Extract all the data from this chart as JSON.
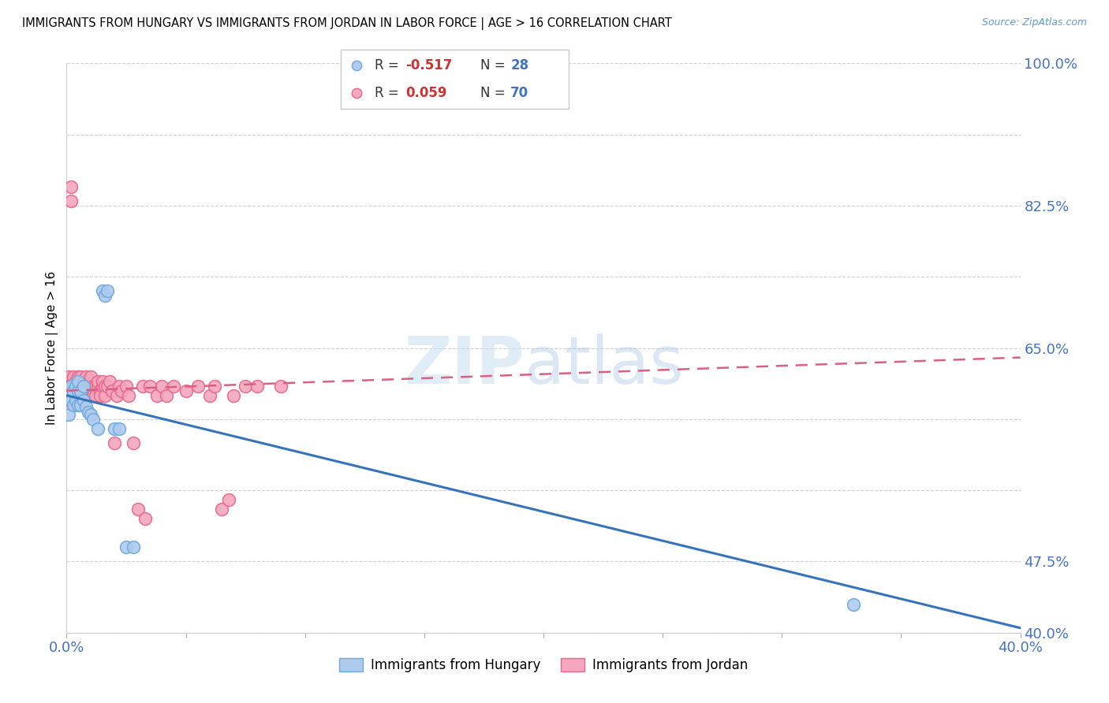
{
  "title": "IMMIGRANTS FROM HUNGARY VS IMMIGRANTS FROM JORDAN IN LABOR FORCE | AGE > 16 CORRELATION CHART",
  "source": "Source: ZipAtlas.com",
  "ylabel": "In Labor Force | Age > 16",
  "xlim": [
    0.0,
    0.4
  ],
  "ylim": [
    0.4,
    1.0
  ],
  "hungary_color": "#aecbee",
  "jordan_color": "#f4a7be",
  "hungary_edge": "#6fa8dc",
  "jordan_edge": "#e8688a",
  "hungary_line_color": "#3574ba",
  "jordan_line_color": "#d96080",
  "watermark_zip": "ZIP",
  "watermark_atlas": "atlas",
  "hungary_x": [
    0.001,
    0.001,
    0.002,
    0.002,
    0.003,
    0.003,
    0.004,
    0.004,
    0.005,
    0.005,
    0.005,
    0.006,
    0.006,
    0.007,
    0.007,
    0.008,
    0.009,
    0.01,
    0.011,
    0.013,
    0.015,
    0.016,
    0.017,
    0.02,
    0.022,
    0.025,
    0.028,
    0.33
  ],
  "hungary_y": [
    0.63,
    0.65,
    0.645,
    0.66,
    0.64,
    0.655,
    0.645,
    0.66,
    0.64,
    0.655,
    0.665,
    0.64,
    0.655,
    0.645,
    0.66,
    0.638,
    0.632,
    0.63,
    0.625,
    0.615,
    0.76,
    0.755,
    0.76,
    0.615,
    0.615,
    0.49,
    0.49,
    0.43
  ],
  "jordan_x": [
    0.001,
    0.001,
    0.001,
    0.002,
    0.002,
    0.002,
    0.003,
    0.003,
    0.003,
    0.004,
    0.004,
    0.004,
    0.005,
    0.005,
    0.005,
    0.005,
    0.006,
    0.006,
    0.006,
    0.007,
    0.007,
    0.007,
    0.008,
    0.008,
    0.008,
    0.009,
    0.009,
    0.01,
    0.01,
    0.01,
    0.011,
    0.011,
    0.012,
    0.012,
    0.013,
    0.013,
    0.014,
    0.014,
    0.015,
    0.015,
    0.016,
    0.016,
    0.017,
    0.018,
    0.019,
    0.02,
    0.021,
    0.022,
    0.023,
    0.025,
    0.026,
    0.028,
    0.03,
    0.032,
    0.033,
    0.035,
    0.038,
    0.04,
    0.042,
    0.045,
    0.05,
    0.055,
    0.06,
    0.062,
    0.065,
    0.068,
    0.07,
    0.075,
    0.08,
    0.09
  ],
  "jordan_y": [
    0.67,
    0.66,
    0.645,
    0.855,
    0.87,
    0.66,
    0.66,
    0.67,
    0.655,
    0.665,
    0.65,
    0.66,
    0.66,
    0.67,
    0.65,
    0.66,
    0.66,
    0.67,
    0.655,
    0.66,
    0.65,
    0.665,
    0.66,
    0.67,
    0.65,
    0.66,
    0.65,
    0.66,
    0.67,
    0.655,
    0.66,
    0.65,
    0.66,
    0.65,
    0.66,
    0.665,
    0.655,
    0.65,
    0.66,
    0.665,
    0.66,
    0.65,
    0.66,
    0.665,
    0.655,
    0.6,
    0.65,
    0.66,
    0.655,
    0.66,
    0.65,
    0.6,
    0.53,
    0.66,
    0.52,
    0.66,
    0.65,
    0.66,
    0.65,
    0.66,
    0.655,
    0.66,
    0.65,
    0.66,
    0.53,
    0.54,
    0.65,
    0.66,
    0.66,
    0.66
  ],
  "hungary_trend_x": [
    0.0,
    0.4
  ],
  "hungary_trend_y": [
    0.65,
    0.405
  ],
  "jordan_trend_x": [
    0.0,
    0.4
  ],
  "jordan_trend_y": [
    0.655,
    0.69
  ]
}
